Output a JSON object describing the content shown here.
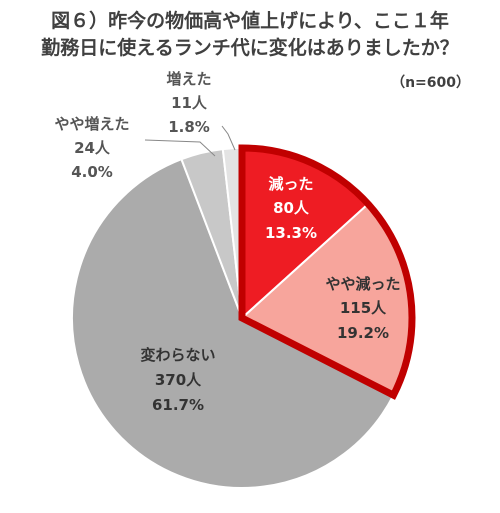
{
  "title_line1": "図６）昨今の物価高や値上げにより、ここ１年",
  "title_line2": "勤務日に使えるランチ代に変化はありましたか？",
  "note": "（n=600）",
  "chart_data": {
    "type": "pie",
    "title": "図６）昨今の物価高や値上げにより、ここ１年勤務日に使えるランチ代に変化はありましたか？",
    "n": 600,
    "slices": [
      {
        "label": "減った",
        "count": "80人",
        "percent": "13.3%",
        "value": 13.3,
        "color": "#ee1c23",
        "highlight": true
      },
      {
        "label": "やや減った",
        "count": "115人",
        "percent": "19.2%",
        "value": 19.2,
        "color": "#f7a59c",
        "highlight": true
      },
      {
        "label": "変わらない",
        "count": "370人",
        "percent": "61.7%",
        "value": 61.7,
        "color": "#ababab",
        "highlight": false
      },
      {
        "label": "やや増えた",
        "count": "24人",
        "percent": "4.0%",
        "value": 4.0,
        "color": "#c8c8c8",
        "highlight": false
      },
      {
        "label": "増えた",
        "count": "11人",
        "percent": "1.8%",
        "value": 1.8,
        "color": "#e3e3e3",
        "highlight": false
      }
    ],
    "highlight_border_color": "#c00000"
  }
}
